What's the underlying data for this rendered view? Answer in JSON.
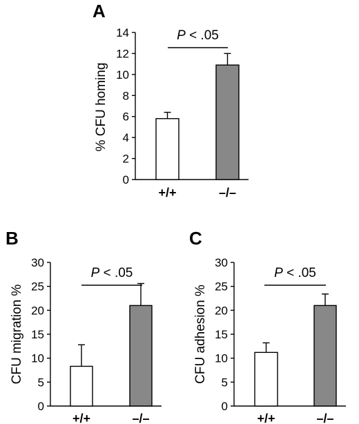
{
  "chart_data": [
    {
      "panel": "A",
      "type": "bar",
      "ylabel": "% CFU homing",
      "categories": [
        "+/+",
        "–/–"
      ],
      "values": [
        5.8,
        10.9
      ],
      "errors": [
        0.6,
        1.1
      ],
      "bar_colors": [
        "#ffffff",
        "#888888"
      ],
      "ylim": [
        0,
        14
      ],
      "yticks": [
        0,
        2,
        4,
        6,
        8,
        10,
        12,
        14
      ],
      "annotation": {
        "p": "P",
        "rest": " < .05"
      }
    },
    {
      "panel": "B",
      "type": "bar",
      "ylabel": "CFU migration %",
      "categories": [
        "+/+",
        "–/–"
      ],
      "values": [
        8.3,
        21.0
      ],
      "errors": [
        4.5,
        4.6
      ],
      "bar_colors": [
        "#ffffff",
        "#888888"
      ],
      "ylim": [
        0,
        30
      ],
      "yticks": [
        0,
        5,
        10,
        15,
        20,
        25,
        30
      ],
      "annotation": {
        "p": "P",
        "rest": " < .05"
      }
    },
    {
      "panel": "C",
      "type": "bar",
      "ylabel": "CFU adhesion %",
      "categories": [
        "+/+",
        "–/–"
      ],
      "values": [
        11.2,
        21.0
      ],
      "errors": [
        2.0,
        2.4
      ],
      "bar_colors": [
        "#ffffff",
        "#888888"
      ],
      "ylim": [
        0,
        30
      ],
      "yticks": [
        0,
        5,
        10,
        15,
        20,
        25,
        30
      ],
      "annotation": {
        "p": "P",
        "rest": " < .05"
      }
    }
  ]
}
